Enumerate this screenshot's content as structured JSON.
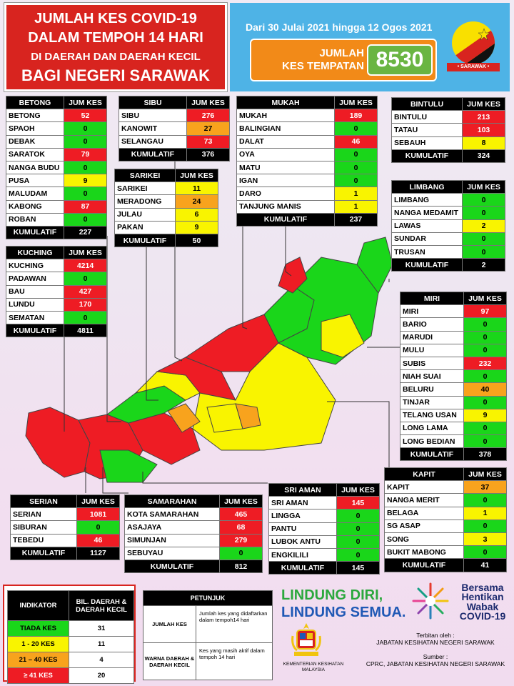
{
  "header": {
    "title_lines": [
      "JUMLAH KES COVID-19",
      "DALAM TEMPOH 14 HARI",
      "DI DAERAH DAN DAERAH KECIL",
      "BAGI NEGERI SARAWAK"
    ],
    "date_range": "Dari 30 Julai 2021 hingga 12 Ogos 2021",
    "total_label_1": "JUMLAH",
    "total_label_2": "KES TEMPATAN",
    "total_value": "8530",
    "flag_label": "• SARAWAK •"
  },
  "table_header_col": "JUM KES",
  "cumulative_label": "KUMULATIF",
  "colors": {
    "red": "#ee1c24",
    "green": "#1ad61a",
    "yellow": "#f9f400",
    "orange": "#f8a31d"
  },
  "divisions": {
    "betong": {
      "name": "BETONG",
      "rows": [
        [
          "BETONG",
          "52",
          "r"
        ],
        [
          "SPAOH",
          "0",
          "g"
        ],
        [
          "DEBAK",
          "0",
          "g"
        ],
        [
          "SARATOK",
          "79",
          "r"
        ],
        [
          "NANGA BUDU",
          "0",
          "g"
        ],
        [
          "PUSA",
          "9",
          "y"
        ],
        [
          "MALUDAM",
          "0",
          "g"
        ],
        [
          "KABONG",
          "87",
          "r"
        ],
        [
          "ROBAN",
          "0",
          "g"
        ]
      ],
      "total": "227"
    },
    "sibu": {
      "name": "SIBU",
      "rows": [
        [
          "SIBU",
          "276",
          "r"
        ],
        [
          "KANOWIT",
          "27",
          "o"
        ],
        [
          "SELANGAU",
          "73",
          "r"
        ]
      ],
      "total": "376"
    },
    "mukah": {
      "name": "MUKAH",
      "rows": [
        [
          "MUKAH",
          "189",
          "r"
        ],
        [
          "BALINGIAN",
          "0",
          "g"
        ],
        [
          "DALAT",
          "46",
          "r"
        ],
        [
          "OYA",
          "0",
          "g"
        ],
        [
          "MATU",
          "0",
          "g"
        ],
        [
          "IGAN",
          "0",
          "g"
        ],
        [
          "DARO",
          "1",
          "y"
        ],
        [
          "TANJUNG MANIS",
          "1",
          "y"
        ]
      ],
      "total": "237"
    },
    "bintulu": {
      "name": "BINTULU",
      "rows": [
        [
          "BINTULU",
          "213",
          "r"
        ],
        [
          "TATAU",
          "103",
          "r"
        ],
        [
          "SEBAUH",
          "8",
          "y"
        ]
      ],
      "total": "324"
    },
    "sarikei": {
      "name": "SARIKEI",
      "rows": [
        [
          "SARIKEI",
          "11",
          "y"
        ],
        [
          "MERADONG",
          "24",
          "o"
        ],
        [
          "JULAU",
          "6",
          "y"
        ],
        [
          "PAKAN",
          "9",
          "y"
        ]
      ],
      "total": "50"
    },
    "limbang": {
      "name": "LIMBANG",
      "rows": [
        [
          "LIMBANG",
          "0",
          "g"
        ],
        [
          "NANGA MEDAMIT",
          "0",
          "g"
        ],
        [
          "LAWAS",
          "2",
          "y"
        ],
        [
          "SUNDAR",
          "0",
          "g"
        ],
        [
          "TRUSAN",
          "0",
          "g"
        ]
      ],
      "total": "2"
    },
    "kuching": {
      "name": "KUCHING",
      "rows": [
        [
          "KUCHING",
          "4214",
          "r"
        ],
        [
          "PADAWAN",
          "0",
          "g"
        ],
        [
          "BAU",
          "427",
          "r"
        ],
        [
          "LUNDU",
          "170",
          "r"
        ],
        [
          "SEMATAN",
          "0",
          "g"
        ]
      ],
      "total": "4811"
    },
    "miri": {
      "name": "MIRI",
      "rows": [
        [
          "MIRI",
          "97",
          "r"
        ],
        [
          "BARIO",
          "0",
          "g"
        ],
        [
          "MARUDI",
          "0",
          "g"
        ],
        [
          "MULU",
          "0",
          "g"
        ],
        [
          "SUBIS",
          "232",
          "r"
        ],
        [
          "NIAH SUAI",
          "0",
          "g"
        ],
        [
          "BELURU",
          "40",
          "o"
        ],
        [
          "TINJAR",
          "0",
          "g"
        ],
        [
          "TELANG USAN",
          "9",
          "y"
        ],
        [
          "LONG LAMA",
          "0",
          "g"
        ],
        [
          "LONG BEDIAN",
          "0",
          "g"
        ]
      ],
      "total": "378"
    },
    "kapit": {
      "name": "KAPIT",
      "rows": [
        [
          "KAPIT",
          "37",
          "o"
        ],
        [
          "NANGA MERIT",
          "0",
          "g"
        ],
        [
          "BELAGA",
          "1",
          "y"
        ],
        [
          "SG ASAP",
          "0",
          "g"
        ],
        [
          "SONG",
          "3",
          "y"
        ],
        [
          "BUKIT MABONG",
          "0",
          "g"
        ]
      ],
      "total": "41"
    },
    "sri_aman": {
      "name": "SRI AMAN",
      "rows": [
        [
          "SRI AMAN",
          "145",
          "r"
        ],
        [
          "LINGGA",
          "0",
          "g"
        ],
        [
          "PANTU",
          "0",
          "g"
        ],
        [
          "LUBOK ANTU",
          "0",
          "g"
        ],
        [
          "ENGKILILI",
          "0",
          "g"
        ]
      ],
      "total": "145"
    },
    "samarahan": {
      "name": "SAMARAHAN",
      "rows": [
        [
          "KOTA SAMARAHAN",
          "465",
          "r"
        ],
        [
          "ASAJAYA",
          "68",
          "r"
        ],
        [
          "SIMUNJAN",
          "279",
          "r"
        ],
        [
          "SEBUYAU",
          "0",
          "g"
        ]
      ],
      "total": "812"
    },
    "serian": {
      "name": "SERIAN",
      "rows": [
        [
          "SERIAN",
          "1081",
          "r"
        ],
        [
          "SIBURAN",
          "0",
          "g"
        ],
        [
          "TEBEDU",
          "46",
          "r"
        ]
      ],
      "total": "1127"
    }
  },
  "legend": {
    "col1": "INDIKATOR",
    "col2": "BIL. DAERAH & DAERAH KECIL",
    "rows": [
      [
        "TIADA KES",
        "31",
        "g"
      ],
      [
        "1 - 20 KES",
        "11",
        "y"
      ],
      [
        "21 – 40 KES",
        "4",
        "o"
      ],
      [
        "≥ 41 KES",
        "20",
        "r"
      ]
    ]
  },
  "petunjuk": {
    "title": "PETUNJUK",
    "r1a": "JUMLAH KES",
    "r1b": "Jumlah kes yang didaftarkan dalam tempoh14 hari",
    "r2a": "WARNA DAERAH & DAERAH KECIL",
    "r2b": "Kes yang masih aktif dalam tempoh 14 hari"
  },
  "footer": {
    "slogan1": "LINDUNG DIRI,",
    "slogan2": "LINDUNG SEMUA.",
    "bersama": [
      "Bersama",
      "Hentikan",
      "Wabak",
      "COVID-19"
    ],
    "kkm": "KEMENTERIAN KESIHATAN MALAYSIA",
    "terbitan_label": "Terbitan oleh :",
    "terbitan": "JABATAN KESIHATAN NEGERI SARAWAK",
    "sumber_label": "Sumber :",
    "sumber": "CPRC, JABATAN KESIHATAN NEGERI SARAWAK"
  }
}
